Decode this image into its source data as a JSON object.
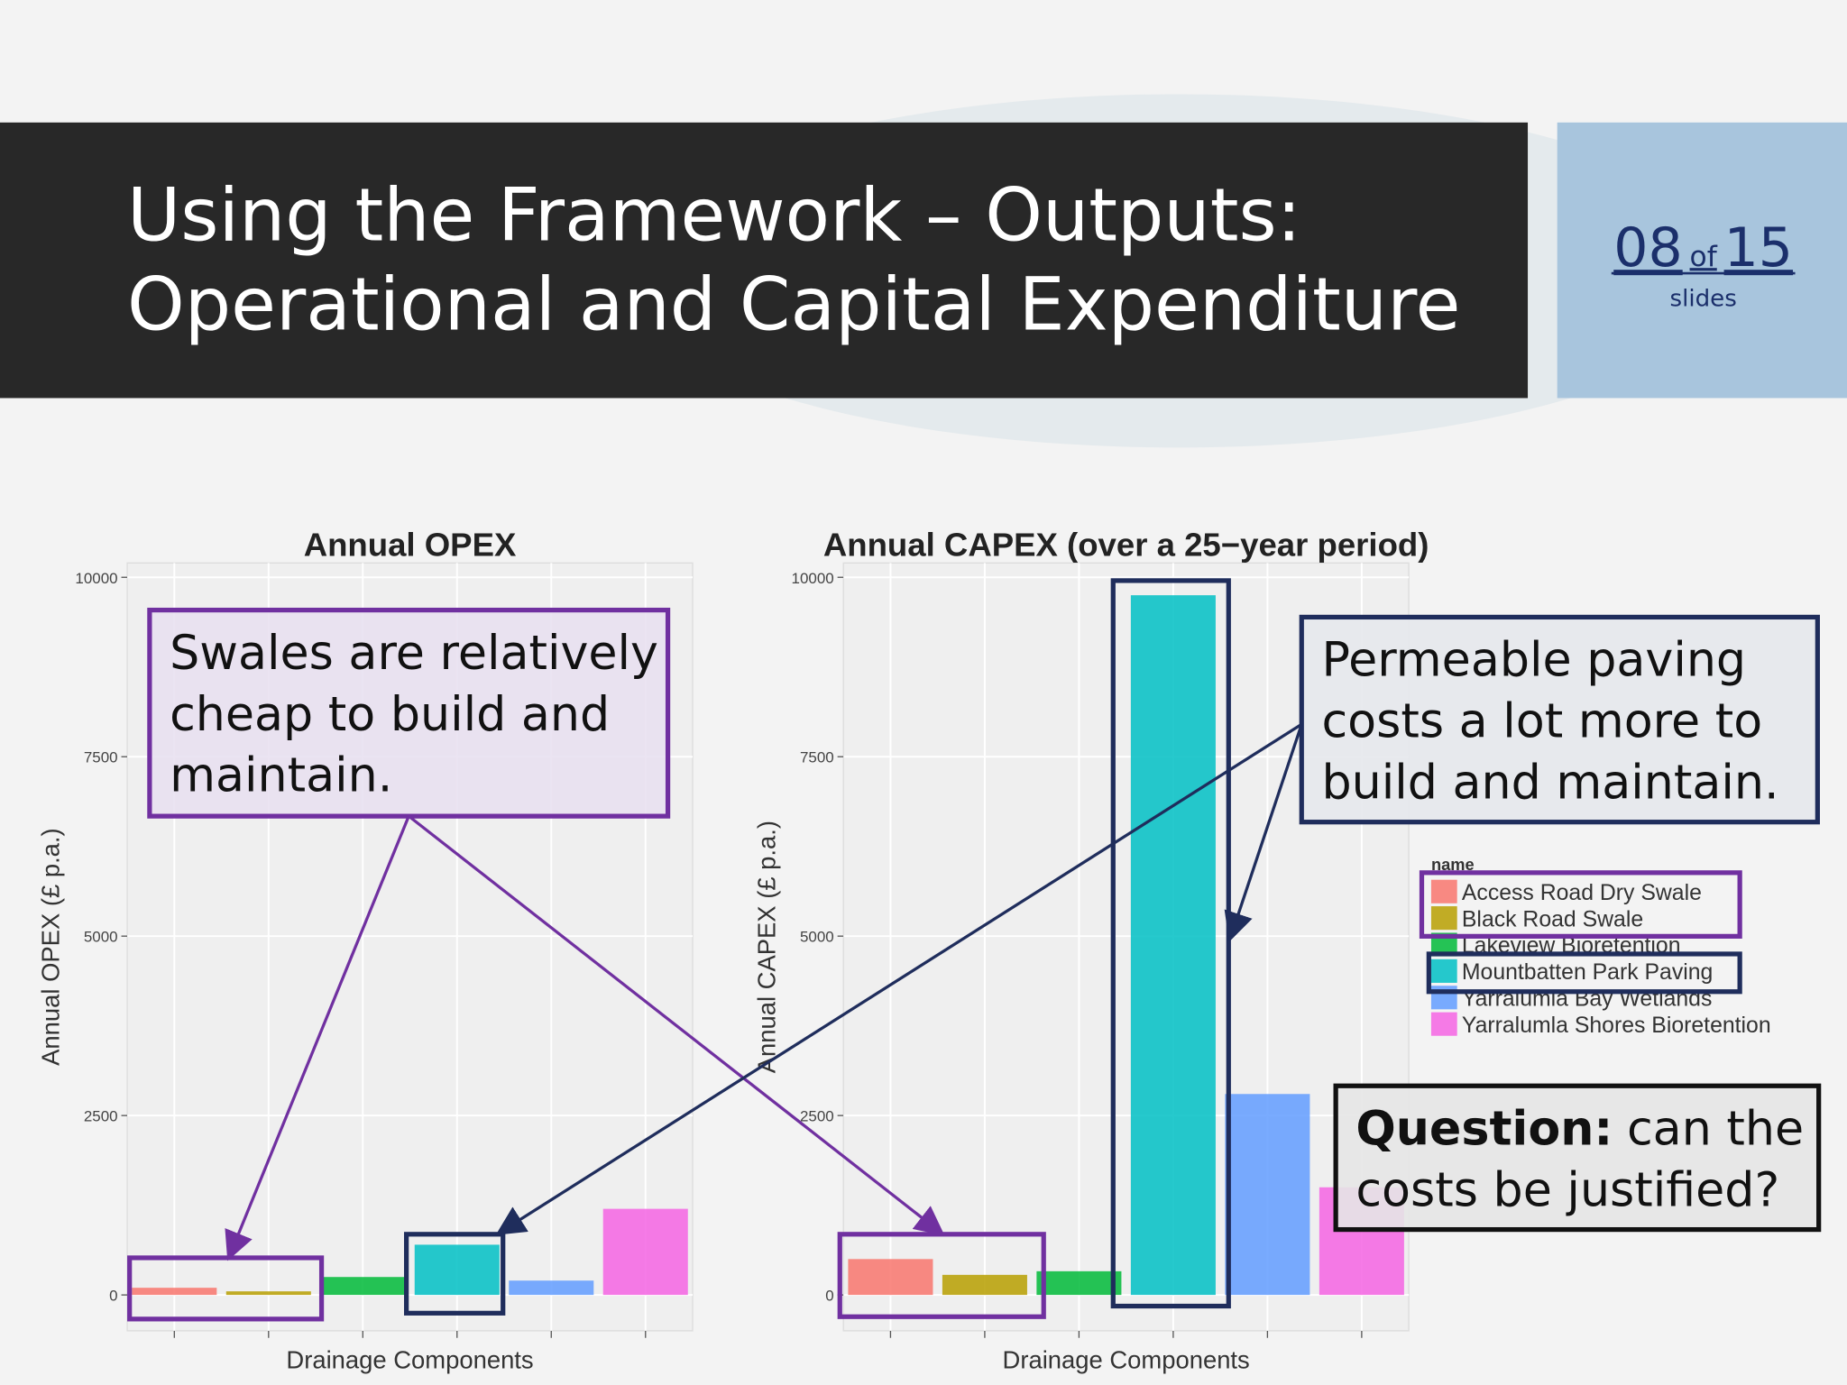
{
  "title_lines": [
    "Using the Framework – Outputs:",
    "Operational and Capital Expenditure"
  ],
  "slide_counter": {
    "current": "08",
    "of": "of",
    "total": "15",
    "label": "slides"
  },
  "chart_data": [
    {
      "type": "bar",
      "title": "Annual OPEX",
      "x_label": "Drainage Components",
      "y_label": "Annual OPEX (£ p.a.)",
      "categories": [
        null,
        null,
        null,
        null,
        null,
        null
      ],
      "values": [
        100,
        50,
        250,
        700,
        200,
        1200
      ],
      "colors": [
        "#f8766d",
        "#b79f00",
        "#00ba38",
        "#00bfc4",
        "#619cff",
        "#f564e3"
      ],
      "ylim": [
        -500,
        10200
      ],
      "yticks": [
        0,
        2500,
        5000,
        7500,
        10000
      ],
      "grid": true
    },
    {
      "type": "bar",
      "title": "Annual CAPEX (over a 25−year period)",
      "x_label": "Drainage Components",
      "y_label": "Annual CAPEX (£ p.a.)",
      "categories": [
        null,
        null,
        null,
        null,
        null,
        null
      ],
      "values": [
        500,
        280,
        330,
        9750,
        2800,
        1500
      ],
      "colors": [
        "#f8766d",
        "#b79f00",
        "#00ba38",
        "#00bfc4",
        "#619cff",
        "#f564e3"
      ],
      "ylim": [
        -500,
        10200
      ],
      "yticks": [
        0,
        2500,
        5000,
        7500,
        10000
      ],
      "grid": true,
      "legend": {
        "title": "name",
        "names": [
          "Access Road Dry Swale",
          "Black Road Swale",
          "Lakeview Bioretention",
          "Mountbatten Park Paving",
          "Yarralumla Bay Wetlands",
          "Yarralumla Shores Bioretention"
        ]
      }
    }
  ],
  "callouts": {
    "swales": [
      "Swales are relatively",
      "cheap to build and",
      "maintain."
    ],
    "paving": [
      "Permeable paving",
      "costs a lot more to",
      "build and maintain."
    ],
    "question": {
      "bold": "Question:",
      "line1": "can the",
      "line2": "costs be justified?"
    }
  }
}
